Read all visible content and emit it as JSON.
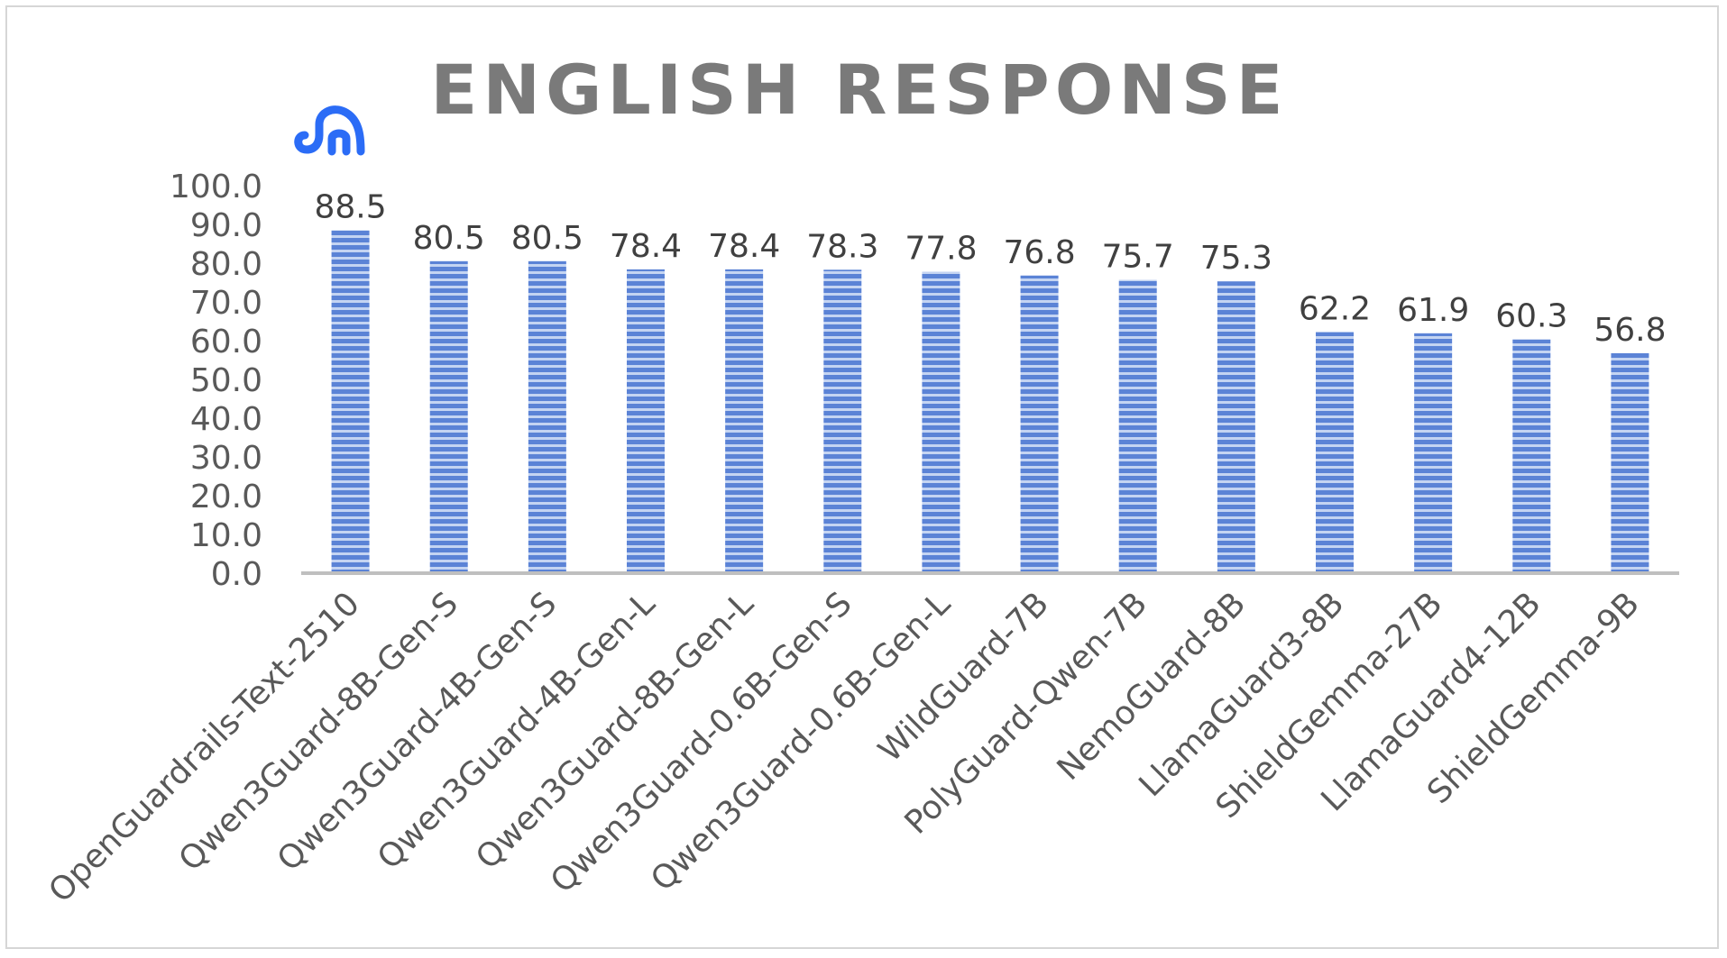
{
  "chart_data": {
    "type": "bar",
    "title": "ENGLISH RESPONSE",
    "xlabel": "",
    "ylabel": "",
    "ylim": [
      0,
      100
    ],
    "yticks": [
      "0.0",
      "10.0",
      "20.0",
      "30.0",
      "40.0",
      "50.0",
      "60.0",
      "70.0",
      "80.0",
      "90.0",
      "100.0"
    ],
    "grid": false,
    "legend": "none",
    "categories": [
      "OpenGuardrails-Text-2510",
      "Qwen3Guard-8B-Gen-S",
      "Qwen3Guard-4B-Gen-S",
      "Qwen3Guard-4B-Gen-L",
      "Qwen3Guard-8B-Gen-L",
      "Qwen3Guard-0.6B-Gen-S",
      "Qwen3Guard-0.6B-Gen-L",
      "WildGuard-7B",
      "PolyGuard-Qwen-7B",
      "NemoGuard-8B",
      "LlamaGuard3-8B",
      "ShieldGemma-27B",
      "LlamaGuard4-12B",
      "ShieldGemma-9B"
    ],
    "values": [
      88.5,
      80.5,
      80.5,
      78.4,
      78.4,
      78.3,
      77.8,
      76.8,
      75.7,
      75.3,
      62.2,
      61.9,
      60.3,
      56.8
    ],
    "data_labels": [
      "88.5",
      "80.5",
      "80.5",
      "78.4",
      "78.4",
      "78.3",
      "77.8",
      "76.8",
      "75.7",
      "75.3",
      "62.2",
      "61.9",
      "60.3",
      "56.8"
    ],
    "bar_pattern": "horizontal-stripes",
    "highlight_icon": "elephant-logo-icon",
    "highlight_index": 0
  },
  "colors": {
    "bar_fill": "#5b83d6",
    "bar_stripe": "#c4d4f2",
    "axis_line": "#bfbfbf",
    "title": "#7a7a7a",
    "logo": "#2b6cf6"
  }
}
